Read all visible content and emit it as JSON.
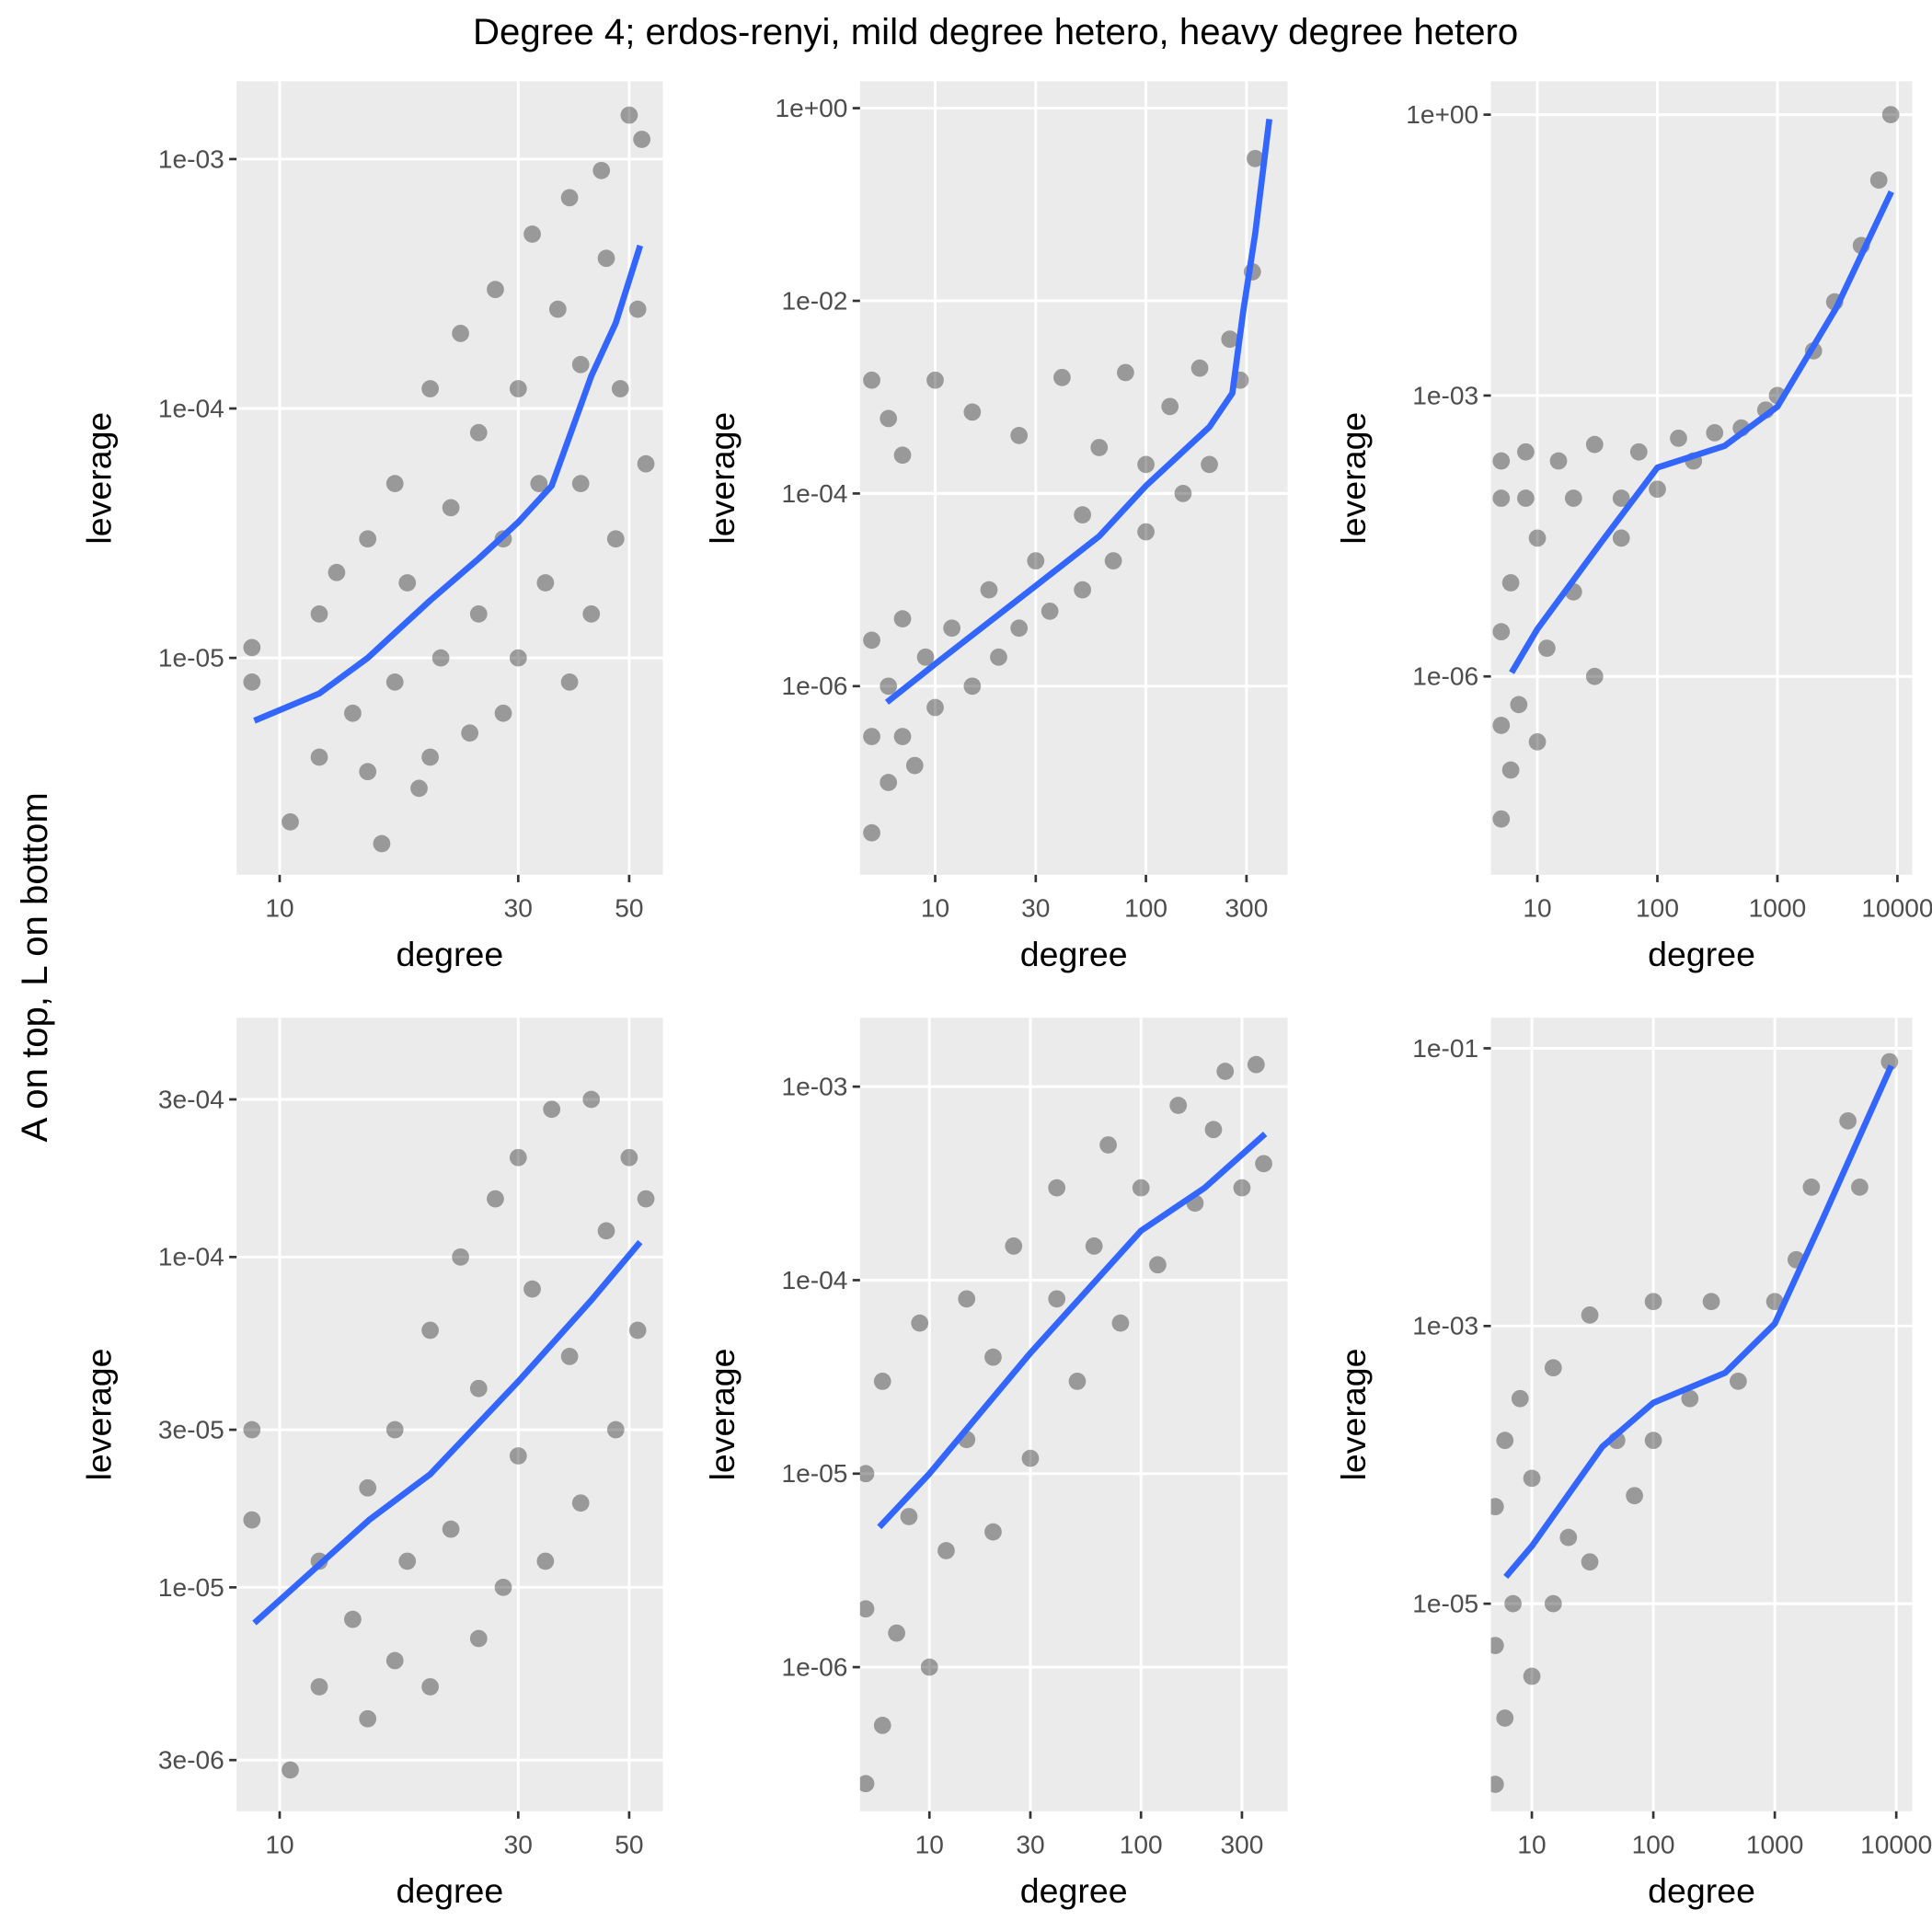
{
  "title": "Degree 4; erdos-renyi, mild degree hetero, heavy degree hetero",
  "ylabel": "A on top, L on bottom",
  "chart_data": [
    {
      "type": "scatter",
      "xlabel": "degree",
      "ylabel": "leverage",
      "xlog": true,
      "ylog": true,
      "grid": true,
      "xlim": [
        8.2,
        58.4
      ],
      "ylim": [
        1.35e-06,
        0.00205
      ],
      "xticks": [
        10,
        30,
        50
      ],
      "yticks": [
        {
          "value": 1e-05,
          "label": "1e-05"
        },
        {
          "value": 0.0001,
          "label": "1e-04"
        },
        {
          "value": 0.001,
          "label": "1e-03"
        }
      ],
      "series": [
        {
          "kind": "points",
          "color": "#000000",
          "x": [
            8.8,
            8.8,
            10.5,
            12,
            12,
            13,
            14,
            15,
            15,
            16,
            17,
            17,
            18,
            19,
            20,
            20,
            21,
            22,
            23,
            24,
            25,
            25,
            27,
            28,
            28,
            30,
            30,
            32,
            33,
            34,
            36,
            38,
            38,
            40,
            40,
            42,
            44,
            45,
            47,
            48,
            50,
            52,
            53,
            54
          ],
          "values": [
            1.1e-05,
            8e-06,
            2.2e-06,
            4e-06,
            1.5e-05,
            2.2e-05,
            6e-06,
            3.5e-06,
            3e-05,
            1.8e-06,
            8e-06,
            5e-05,
            2e-05,
            3e-06,
            4e-06,
            0.00012,
            1e-05,
            4e-05,
            0.0002,
            5e-06,
            1.5e-05,
            8e-05,
            0.0003,
            6e-06,
            3e-05,
            1e-05,
            0.00012,
            0.0005,
            5e-05,
            2e-05,
            0.00025,
            8e-06,
            0.0007,
            5e-05,
            0.00015,
            1.5e-05,
            0.0009,
            0.0004,
            3e-05,
            0.00012,
            0.0015,
            0.00025,
            0.0012,
            6e-05
          ]
        },
        {
          "kind": "line",
          "color": "#3366ff",
          "x": [
            8.9,
            12,
            15,
            20,
            25,
            30,
            35,
            42,
            47,
            52.6
          ],
          "values": [
            5.6e-06,
            7.2e-06,
            1e-05,
            1.7e-05,
            2.5e-05,
            3.5e-05,
            4.9e-05,
            0.000135,
            0.00022,
            0.00045
          ]
        }
      ]
    },
    {
      "type": "scatter",
      "xlabel": "degree",
      "ylabel": "leverage",
      "xlog": true,
      "ylog": true,
      "grid": true,
      "xlim": [
        4.4,
        470
      ],
      "ylim": [
        1.1e-08,
        1.9
      ],
      "xticks": [
        10,
        30,
        100,
        300
      ],
      "yticks": [
        {
          "value": 1e-06,
          "label": "1e-06"
        },
        {
          "value": 0.0001,
          "label": "1e-04"
        },
        {
          "value": 0.01,
          "label": "1e-02"
        },
        {
          "value": 1,
          "label": "1e+00"
        }
      ],
      "series": [
        {
          "kind": "points",
          "color": "#000000",
          "x": [
            5,
            5,
            5,
            5,
            6,
            6,
            6,
            7,
            7,
            7,
            8,
            9,
            10,
            10,
            12,
            15,
            15,
            18,
            20,
            25,
            25,
            30,
            35,
            40,
            50,
            50,
            60,
            70,
            80,
            100,
            100,
            130,
            150,
            180,
            200,
            250,
            280,
            320,
            330
          ],
          "values": [
            3e-08,
            3e-07,
            3e-06,
            0.0015,
            1e-07,
            1e-06,
            0.0006,
            3e-07,
            5e-06,
            0.00025,
            1.5e-07,
            2e-06,
            6e-07,
            0.0015,
            4e-06,
            1e-06,
            0.0007,
            1e-05,
            2e-06,
            4e-06,
            0.0004,
            2e-05,
            6e-06,
            0.0016,
            1e-05,
            6e-05,
            0.0003,
            2e-05,
            0.0018,
            4e-05,
            0.0002,
            0.0008,
            0.0001,
            0.002,
            0.0002,
            0.004,
            0.0015,
            0.02,
            0.3
          ]
        },
        {
          "kind": "line",
          "color": "#3366ff",
          "x": [
            5.9,
            10,
            30,
            60,
            100,
            200,
            257,
            290,
            330,
            385
          ],
          "values": [
            6.8e-07,
            1.7e-06,
            1.1e-05,
            3.6e-05,
            0.00012,
            0.00049,
            0.0011,
            0.008,
            0.05,
            0.77
          ]
        }
      ]
    },
    {
      "type": "scatter",
      "xlabel": "degree",
      "ylabel": "leverage",
      "xlog": true,
      "ylog": true,
      "grid": true,
      "xlim": [
        4.1,
        13300
      ],
      "ylim": [
        7.6e-09,
        2.27
      ],
      "xticks": [
        10,
        100,
        1000,
        10000
      ],
      "yticks": [
        {
          "value": 1e-06,
          "label": "1e-06"
        },
        {
          "value": 0.001,
          "label": "1e-03"
        },
        {
          "value": 1,
          "label": "1e+00"
        }
      ],
      "series": [
        {
          "kind": "points",
          "color": "#000000",
          "x": [
            5,
            5,
            5,
            5,
            5,
            6,
            6,
            7,
            8,
            8,
            10,
            10,
            12,
            15,
            20,
            20,
            30,
            30,
            50,
            50,
            70,
            100,
            150,
            200,
            300,
            500,
            800,
            1000,
            2000,
            3000,
            5000,
            7000,
            8800
          ],
          "values": [
            3e-08,
            3e-07,
            3e-06,
            0.0002,
            8e-05,
            1e-07,
            1e-05,
            5e-07,
            0.00025,
            8e-05,
            2e-07,
            3e-05,
            2e-06,
            0.0002,
            8e-06,
            8e-05,
            1e-06,
            0.0003,
            3e-05,
            8e-05,
            0.00025,
            0.0001,
            0.00035,
            0.0002,
            0.0004,
            0.00045,
            0.0007,
            0.001,
            0.003,
            0.01,
            0.04,
            0.2,
            1
          ]
        },
        {
          "kind": "line",
          "color": "#3366ff",
          "x": [
            6.1,
            10,
            34,
            100,
            363,
            1000,
            3090,
            8900
          ],
          "values": [
            1.1e-06,
            3.2e-06,
            2.7e-05,
            0.00017,
            0.00029,
            0.00076,
            0.0086,
            0.15
          ]
        }
      ]
    },
    {
      "type": "scatter",
      "xlabel": "degree",
      "ylabel": "leverage",
      "xlog": true,
      "ylog": true,
      "grid": true,
      "xlim": [
        8.2,
        58.4
      ],
      "ylim": [
        2.1e-06,
        0.00053
      ],
      "xticks": [
        10,
        30,
        50
      ],
      "yticks": [
        {
          "value": 3e-06,
          "label": "3e-06"
        },
        {
          "value": 1e-05,
          "label": "1e-05"
        },
        {
          "value": 3e-05,
          "label": "3e-05"
        },
        {
          "value": 0.0001,
          "label": "1e-04"
        },
        {
          "value": 0.0003,
          "label": "3e-04"
        }
      ],
      "series": [
        {
          "kind": "points",
          "color": "#000000",
          "x": [
            8.8,
            8.8,
            10.5,
            12,
            12,
            14,
            15,
            15,
            17,
            17,
            18,
            20,
            20,
            22,
            23,
            25,
            25,
            27,
            28,
            30,
            30,
            32,
            34,
            35,
            38,
            40,
            42,
            45,
            47,
            50,
            52,
            54
          ],
          "values": [
            3e-05,
            1.6e-05,
            2.8e-06,
            5e-06,
            1.2e-05,
            8e-06,
            2e-05,
            4e-06,
            3e-05,
            6e-06,
            1.2e-05,
            6e-05,
            5e-06,
            1.5e-05,
            0.0001,
            7e-06,
            4e-05,
            0.00015,
            1e-05,
            0.0002,
            2.5e-05,
            8e-05,
            1.2e-05,
            0.00028,
            5e-05,
            1.8e-05,
            0.0003,
            0.00012,
            3e-05,
            0.0002,
            6e-05,
            0.00015
          ]
        },
        {
          "kind": "line",
          "color": "#3366ff",
          "x": [
            8.9,
            15.1,
            20,
            30,
            42,
            52.6
          ],
          "values": [
            7.8e-06,
            1.6e-05,
            2.2e-05,
            4.2e-05,
            7.4e-05,
            0.000111
          ]
        }
      ]
    },
    {
      "type": "scatter",
      "xlabel": "degree",
      "ylabel": "leverage",
      "xlog": true,
      "ylog": true,
      "grid": true,
      "xlim": [
        4.7,
        493
      ],
      "ylim": [
        1.8e-07,
        0.00227
      ],
      "xticks": [
        10,
        30,
        100,
        300
      ],
      "yticks": [
        {
          "value": 1e-06,
          "label": "1e-06"
        },
        {
          "value": 1e-05,
          "label": "1e-05"
        },
        {
          "value": 0.0001,
          "label": "1e-04"
        },
        {
          "value": 0.001,
          "label": "1e-03"
        }
      ],
      "series": [
        {
          "kind": "points",
          "color": "#000000",
          "x": [
            5,
            5,
            5,
            6,
            6,
            7,
            8,
            9,
            10,
            12,
            15,
            15,
            20,
            20,
            25,
            30,
            40,
            40,
            50,
            60,
            70,
            80,
            100,
            120,
            150,
            180,
            220,
            250,
            300,
            350,
            380
          ],
          "values": [
            2.5e-07,
            2e-06,
            1e-05,
            5e-07,
            3e-05,
            1.5e-06,
            6e-06,
            6e-05,
            1e-06,
            4e-06,
            8e-05,
            1.5e-05,
            5e-06,
            4e-05,
            0.00015,
            1.2e-05,
            8e-05,
            0.0003,
            3e-05,
            0.00015,
            0.0005,
            6e-05,
            0.0003,
            0.00012,
            0.0008,
            0.00025,
            0.0006,
            0.0012,
            0.0003,
            0.0013,
            0.0004
          ]
        },
        {
          "kind": "line",
          "color": "#3366ff",
          "x": [
            5.8,
            10,
            30,
            100,
            200,
            386
          ],
          "values": [
            5.3e-06,
            1e-05,
            4.2e-05,
            0.00018,
            0.0003,
            0.00057
          ]
        }
      ]
    },
    {
      "type": "scatter",
      "xlabel": "degree",
      "ylabel": "leverage",
      "xlog": true,
      "ylog": true,
      "grid": true,
      "xlim": [
        4.6,
        13550
      ],
      "ylim": [
        3.2e-07,
        0.166
      ],
      "xticks": [
        10,
        100,
        1000,
        10000
      ],
      "yticks": [
        {
          "value": 1e-05,
          "label": "1e-05"
        },
        {
          "value": 0.001,
          "label": "1e-03"
        },
        {
          "value": 0.1,
          "label": "1e-01"
        }
      ],
      "series": [
        {
          "kind": "points",
          "color": "#000000",
          "x": [
            5,
            5,
            5,
            6,
            6,
            7,
            8,
            10,
            10,
            15,
            15,
            20,
            30,
            30,
            50,
            70,
            100,
            100,
            200,
            300,
            500,
            1000,
            1500,
            2000,
            4000,
            5000,
            8800
          ],
          "values": [
            5e-07,
            5e-06,
            5e-05,
            1.5e-06,
            0.00015,
            1e-05,
            0.0003,
            3e-06,
            8e-05,
            0.0005,
            1e-05,
            3e-05,
            0.0012,
            2e-05,
            0.00015,
            6e-05,
            0.0015,
            0.00015,
            0.0003,
            0.0015,
            0.0004,
            0.0015,
            0.003,
            0.01,
            0.03,
            0.01,
            0.08
          ]
        },
        {
          "kind": "line",
          "color": "#3366ff",
          "x": [
            6.1,
            10,
            38,
            100,
            390,
            1000,
            2480,
            9100
          ],
          "values": [
            1.56e-05,
            2.6e-05,
            0.000135,
            0.00028,
            0.00046,
            0.00104,
            0.0059,
            0.075
          ]
        }
      ]
    }
  ]
}
